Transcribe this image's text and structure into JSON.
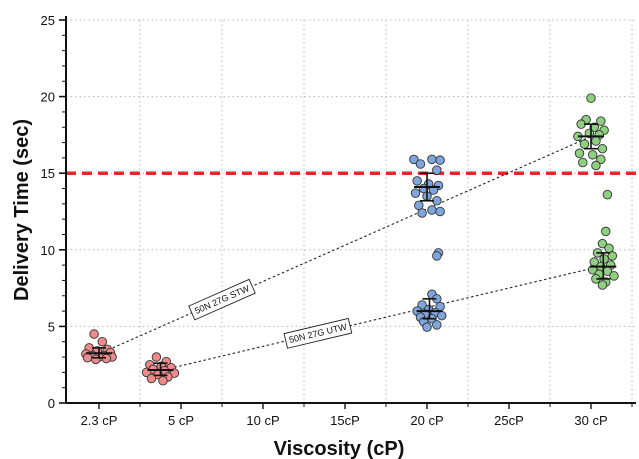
{
  "chart_data": {
    "type": "scatter",
    "xlabel": "Viscosity (cP)",
    "ylabel": "Delivery Time (sec)",
    "categories": [
      "2.3 cP",
      "5 cP",
      "10 cP",
      "15cP",
      "20 cP",
      "25cP",
      "30 cP"
    ],
    "yticks": [
      "0",
      "5",
      "10",
      "15",
      "20",
      "25"
    ],
    "ylim": [
      0,
      25
    ],
    "grid": "dotted, vertical and horizontal",
    "threshold": {
      "value": 15,
      "color": "#e8262a",
      "style": "dashed"
    },
    "series": [
      {
        "color": "#f08a8a",
        "points": [
          {
            "category": "2.3 cP",
            "offset": -0.06,
            "value": 4.5
          },
          {
            "category": "2.3 cP",
            "offset": 0.04,
            "value": 4.0
          },
          {
            "category": "2.3 cP",
            "offset": -0.12,
            "value": 3.6
          },
          {
            "category": "2.3 cP",
            "offset": 0.1,
            "value": 3.5
          },
          {
            "category": "2.3 cP",
            "offset": -0.02,
            "value": 3.4
          },
          {
            "category": "2.3 cP",
            "offset": 0.14,
            "value": 3.3
          },
          {
            "category": "2.3 cP",
            "offset": -0.16,
            "value": 3.2
          },
          {
            "category": "2.3 cP",
            "offset": 0.06,
            "value": 3.1
          },
          {
            "category": "2.3 cP",
            "offset": -0.08,
            "value": 3.1
          },
          {
            "category": "2.3 cP",
            "offset": 0.16,
            "value": 3.0
          },
          {
            "category": "2.3 cP",
            "offset": 0.0,
            "value": 3.0
          },
          {
            "category": "2.3 cP",
            "offset": -0.14,
            "value": 2.95
          },
          {
            "category": "2.3 cP",
            "offset": 0.09,
            "value": 2.9
          },
          {
            "category": "2.3 cP",
            "offset": -0.04,
            "value": 2.85
          }
        ],
        "mean": 3.25,
        "error": [
          2.95,
          3.6
        ]
      },
      {
        "color": "#f08a8a",
        "points": [
          {
            "category": "2.3 cP",
            "offset": 0.7,
            "value": 3.0
          },
          {
            "category": "2.3 cP",
            "offset": 0.82,
            "value": 2.7
          },
          {
            "category": "2.3 cP",
            "offset": 0.62,
            "value": 2.5
          },
          {
            "category": "2.3 cP",
            "offset": 0.76,
            "value": 2.4
          },
          {
            "category": "2.3 cP",
            "offset": 0.88,
            "value": 2.3
          },
          {
            "category": "2.3 cP",
            "offset": 0.66,
            "value": 2.2
          },
          {
            "category": "2.3 cP",
            "offset": 0.8,
            "value": 2.1
          },
          {
            "category": "2.3 cP",
            "offset": 0.58,
            "value": 2.0
          },
          {
            "category": "2.3 cP",
            "offset": 0.92,
            "value": 1.95
          },
          {
            "category": "2.3 cP",
            "offset": 0.72,
            "value": 1.85
          },
          {
            "category": "2.3 cP",
            "offset": 0.84,
            "value": 1.7
          },
          {
            "category": "2.3 cP",
            "offset": 0.64,
            "value": 1.6
          },
          {
            "category": "2.3 cP",
            "offset": 0.78,
            "value": 1.45
          }
        ],
        "mean": 2.15,
        "error": [
          1.8,
          2.6
        ]
      },
      {
        "color": "#7ea6dc",
        "points": [
          {
            "category": "20 cP",
            "offset": -0.16,
            "value": 15.9
          },
          {
            "category": "20 cP",
            "offset": 0.06,
            "value": 15.9
          },
          {
            "category": "20 cP",
            "offset": 0.16,
            "value": 15.85
          },
          {
            "category": "20 cP",
            "offset": -0.08,
            "value": 15.6
          },
          {
            "category": "20 cP",
            "offset": 0.12,
            "value": 15.2
          },
          {
            "category": "20 cP",
            "offset": -0.12,
            "value": 14.5
          },
          {
            "category": "20 cP",
            "offset": 0.02,
            "value": 14.3
          },
          {
            "category": "20 cP",
            "offset": 0.14,
            "value": 14.2
          },
          {
            "category": "20 cP",
            "offset": -0.04,
            "value": 14.0
          },
          {
            "category": "20 cP",
            "offset": 0.08,
            "value": 13.9
          },
          {
            "category": "20 cP",
            "offset": -0.14,
            "value": 13.7
          },
          {
            "category": "20 cP",
            "offset": 0.0,
            "value": 13.5
          },
          {
            "category": "20 cP",
            "offset": 0.12,
            "value": 13.2
          },
          {
            "category": "20 cP",
            "offset": -0.1,
            "value": 12.9
          },
          {
            "category": "20 cP",
            "offset": 0.06,
            "value": 12.6
          },
          {
            "category": "20 cP",
            "offset": -0.06,
            "value": 12.4
          },
          {
            "category": "20 cP",
            "offset": 0.16,
            "value": 12.5
          }
        ],
        "mean": 14.1,
        "error": [
          13.2,
          15.0
        ]
      },
      {
        "color": "#7ea6dc",
        "points": [
          {
            "category": "20 cP",
            "offset": 0.14,
            "value": 9.8
          },
          {
            "category": "20 cP",
            "offset": 0.12,
            "value": 9.6
          },
          {
            "category": "20 cP",
            "offset": 0.06,
            "value": 7.1
          },
          {
            "category": "20 cP",
            "offset": 0.12,
            "value": 6.8
          },
          {
            "category": "20 cP",
            "offset": -0.06,
            "value": 6.4
          },
          {
            "category": "20 cP",
            "offset": 0.16,
            "value": 6.3
          },
          {
            "category": "20 cP",
            "offset": 0.02,
            "value": 6.1
          },
          {
            "category": "20 cP",
            "offset": -0.12,
            "value": 6.0
          },
          {
            "category": "20 cP",
            "offset": 0.1,
            "value": 5.9
          },
          {
            "category": "20 cP",
            "offset": -0.02,
            "value": 5.8
          },
          {
            "category": "20 cP",
            "offset": 0.18,
            "value": 5.7
          },
          {
            "category": "20 cP",
            "offset": -0.08,
            "value": 5.6
          },
          {
            "category": "20 cP",
            "offset": 0.06,
            "value": 5.5
          },
          {
            "category": "20 cP",
            "offset": -0.04,
            "value": 5.3
          },
          {
            "category": "20 cP",
            "offset": 0.12,
            "value": 5.1
          },
          {
            "category": "20 cP",
            "offset": 0.0,
            "value": 4.95
          }
        ],
        "mean": 6.0,
        "error": [
          5.5,
          6.8
        ]
      },
      {
        "color": "#8ed080",
        "points": [
          {
            "category": "30 cP",
            "offset": 0.0,
            "value": 19.9
          },
          {
            "category": "30 cP",
            "offset": -0.06,
            "value": 18.5
          },
          {
            "category": "30 cP",
            "offset": 0.12,
            "value": 18.4
          },
          {
            "category": "30 cP",
            "offset": -0.12,
            "value": 18.2
          },
          {
            "category": "30 cP",
            "offset": 0.04,
            "value": 18.0
          },
          {
            "category": "30 cP",
            "offset": 0.16,
            "value": 17.8
          },
          {
            "category": "30 cP",
            "offset": -0.02,
            "value": 17.6
          },
          {
            "category": "30 cP",
            "offset": 0.1,
            "value": 17.5
          },
          {
            "category": "30 cP",
            "offset": -0.16,
            "value": 17.4
          },
          {
            "category": "30 cP",
            "offset": 0.06,
            "value": 17.1
          },
          {
            "category": "30 cP",
            "offset": -0.08,
            "value": 16.9
          },
          {
            "category": "30 cP",
            "offset": 0.14,
            "value": 16.6
          },
          {
            "category": "30 cP",
            "offset": -0.14,
            "value": 16.3
          },
          {
            "category": "30 cP",
            "offset": 0.02,
            "value": 16.2
          },
          {
            "category": "30 cP",
            "offset": 0.12,
            "value": 15.9
          },
          {
            "category": "30 cP",
            "offset": -0.1,
            "value": 15.7
          },
          {
            "category": "30 cP",
            "offset": 0.06,
            "value": 15.5
          }
        ],
        "mean": 17.4,
        "error": [
          16.6,
          18.2
        ]
      },
      {
        "color": "#8ed080",
        "points": [
          {
            "category": "30 cP",
            "offset": 0.2,
            "value": 13.6
          },
          {
            "category": "30 cP",
            "offset": 0.18,
            "value": 11.2
          },
          {
            "category": "30 cP",
            "offset": 0.14,
            "value": 10.4
          },
          {
            "category": "30 cP",
            "offset": 0.22,
            "value": 10.1
          },
          {
            "category": "30 cP",
            "offset": 0.08,
            "value": 9.8
          },
          {
            "category": "30 cP",
            "offset": 0.26,
            "value": 9.6
          },
          {
            "category": "30 cP",
            "offset": 0.16,
            "value": 9.4
          },
          {
            "category": "30 cP",
            "offset": 0.04,
            "value": 9.2
          },
          {
            "category": "30 cP",
            "offset": 0.24,
            "value": 9.0
          },
          {
            "category": "30 cP",
            "offset": 0.12,
            "value": 8.9
          },
          {
            "category": "30 cP",
            "offset": 0.02,
            "value": 8.7
          },
          {
            "category": "30 cP",
            "offset": 0.2,
            "value": 8.6
          },
          {
            "category": "30 cP",
            "offset": 0.1,
            "value": 8.4
          },
          {
            "category": "30 cP",
            "offset": 0.28,
            "value": 8.3
          },
          {
            "category": "30 cP",
            "offset": 0.06,
            "value": 8.1
          },
          {
            "category": "30 cP",
            "offset": 0.18,
            "value": 7.9
          },
          {
            "category": "30 cP",
            "offset": 0.14,
            "value": 7.7
          }
        ],
        "mean": 8.9,
        "error": [
          8.1,
          9.8
        ]
      }
    ],
    "trendlines": [
      {
        "label": "50N 27G STW",
        "from": {
          "category": "2.3 cP",
          "offset": 0.0,
          "value": 3.2
        },
        "to": {
          "category": "30 cP",
          "offset": 0.0,
          "value": 17.4
        }
      },
      {
        "label": "50N 27G UTW",
        "from": {
          "category": "2.3 cP",
          "offset": 0.74,
          "value": 2.1
        },
        "to": {
          "category": "30 cP",
          "offset": 0.1,
          "value": 8.9
        }
      }
    ]
  }
}
